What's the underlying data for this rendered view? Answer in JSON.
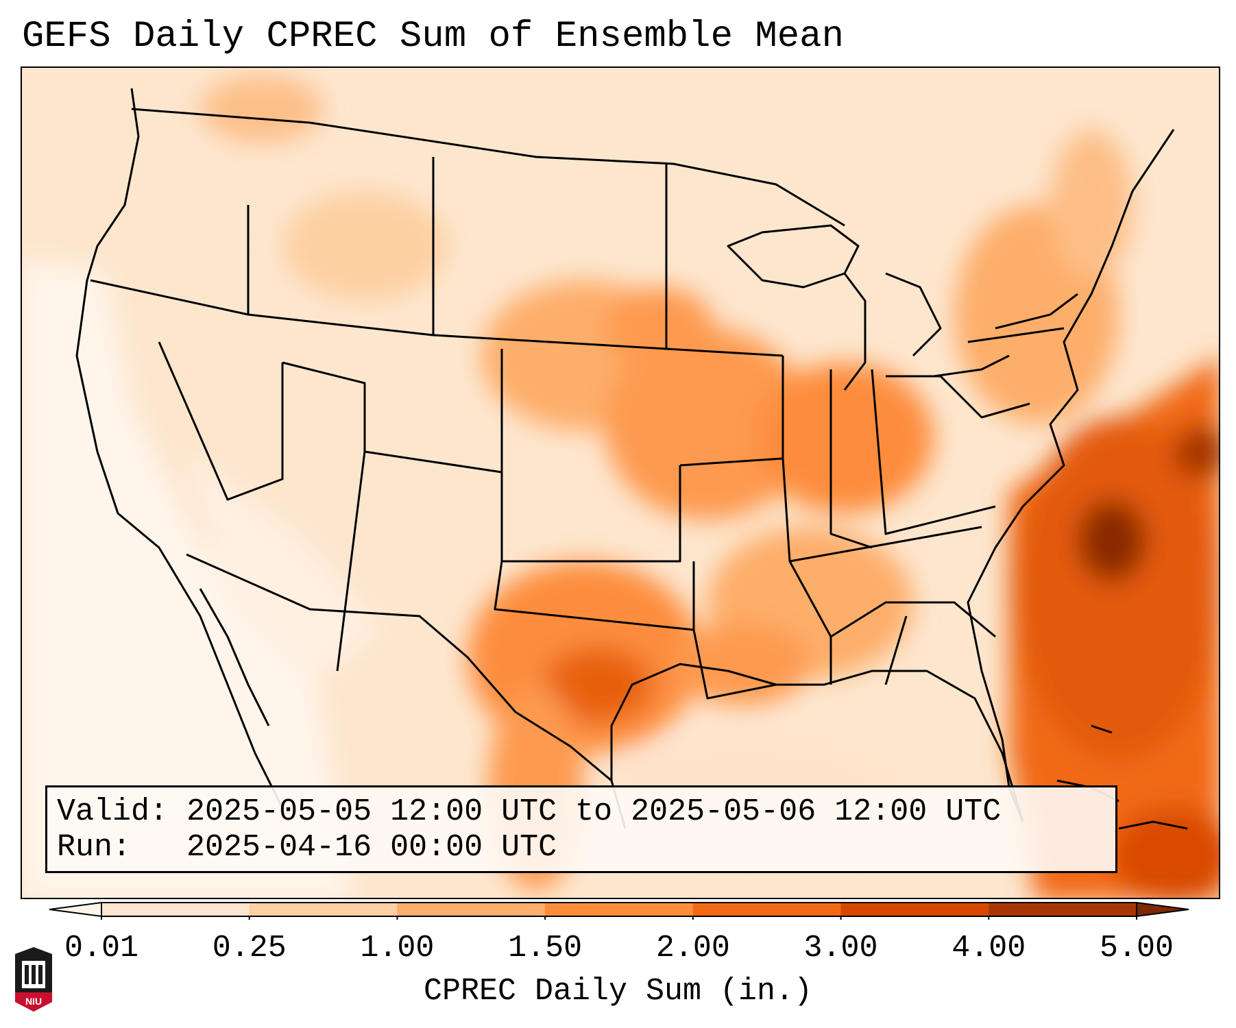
{
  "title": "GEFS Daily CPREC Sum of Ensemble Mean",
  "info": {
    "valid_label": "Valid:",
    "valid_value": "2025-05-05 12:00 UTC to 2025-05-06 12:00 UTC",
    "run_label": "Run:",
    "run_value": "2025-04-16 00:00 UTC"
  },
  "colorbar": {
    "label": "CPREC Daily Sum (in.)",
    "ticks": [
      "0.01",
      "0.25",
      "1.00",
      "1.50",
      "2.00",
      "3.00",
      "4.00",
      "5.00"
    ],
    "colors": [
      "#fff5eb",
      "#fee6ce",
      "#fdd0a2",
      "#fdae6b",
      "#fd8d3c",
      "#f16913",
      "#d94801",
      "#a63603",
      "#7f2704"
    ],
    "extend": "both"
  },
  "logo": {
    "text": "NIU",
    "icon": "university-seal-icon",
    "color": "#c8102e"
  },
  "colors": {
    "land_base": "#fde9d6",
    "border": "#000000"
  }
}
